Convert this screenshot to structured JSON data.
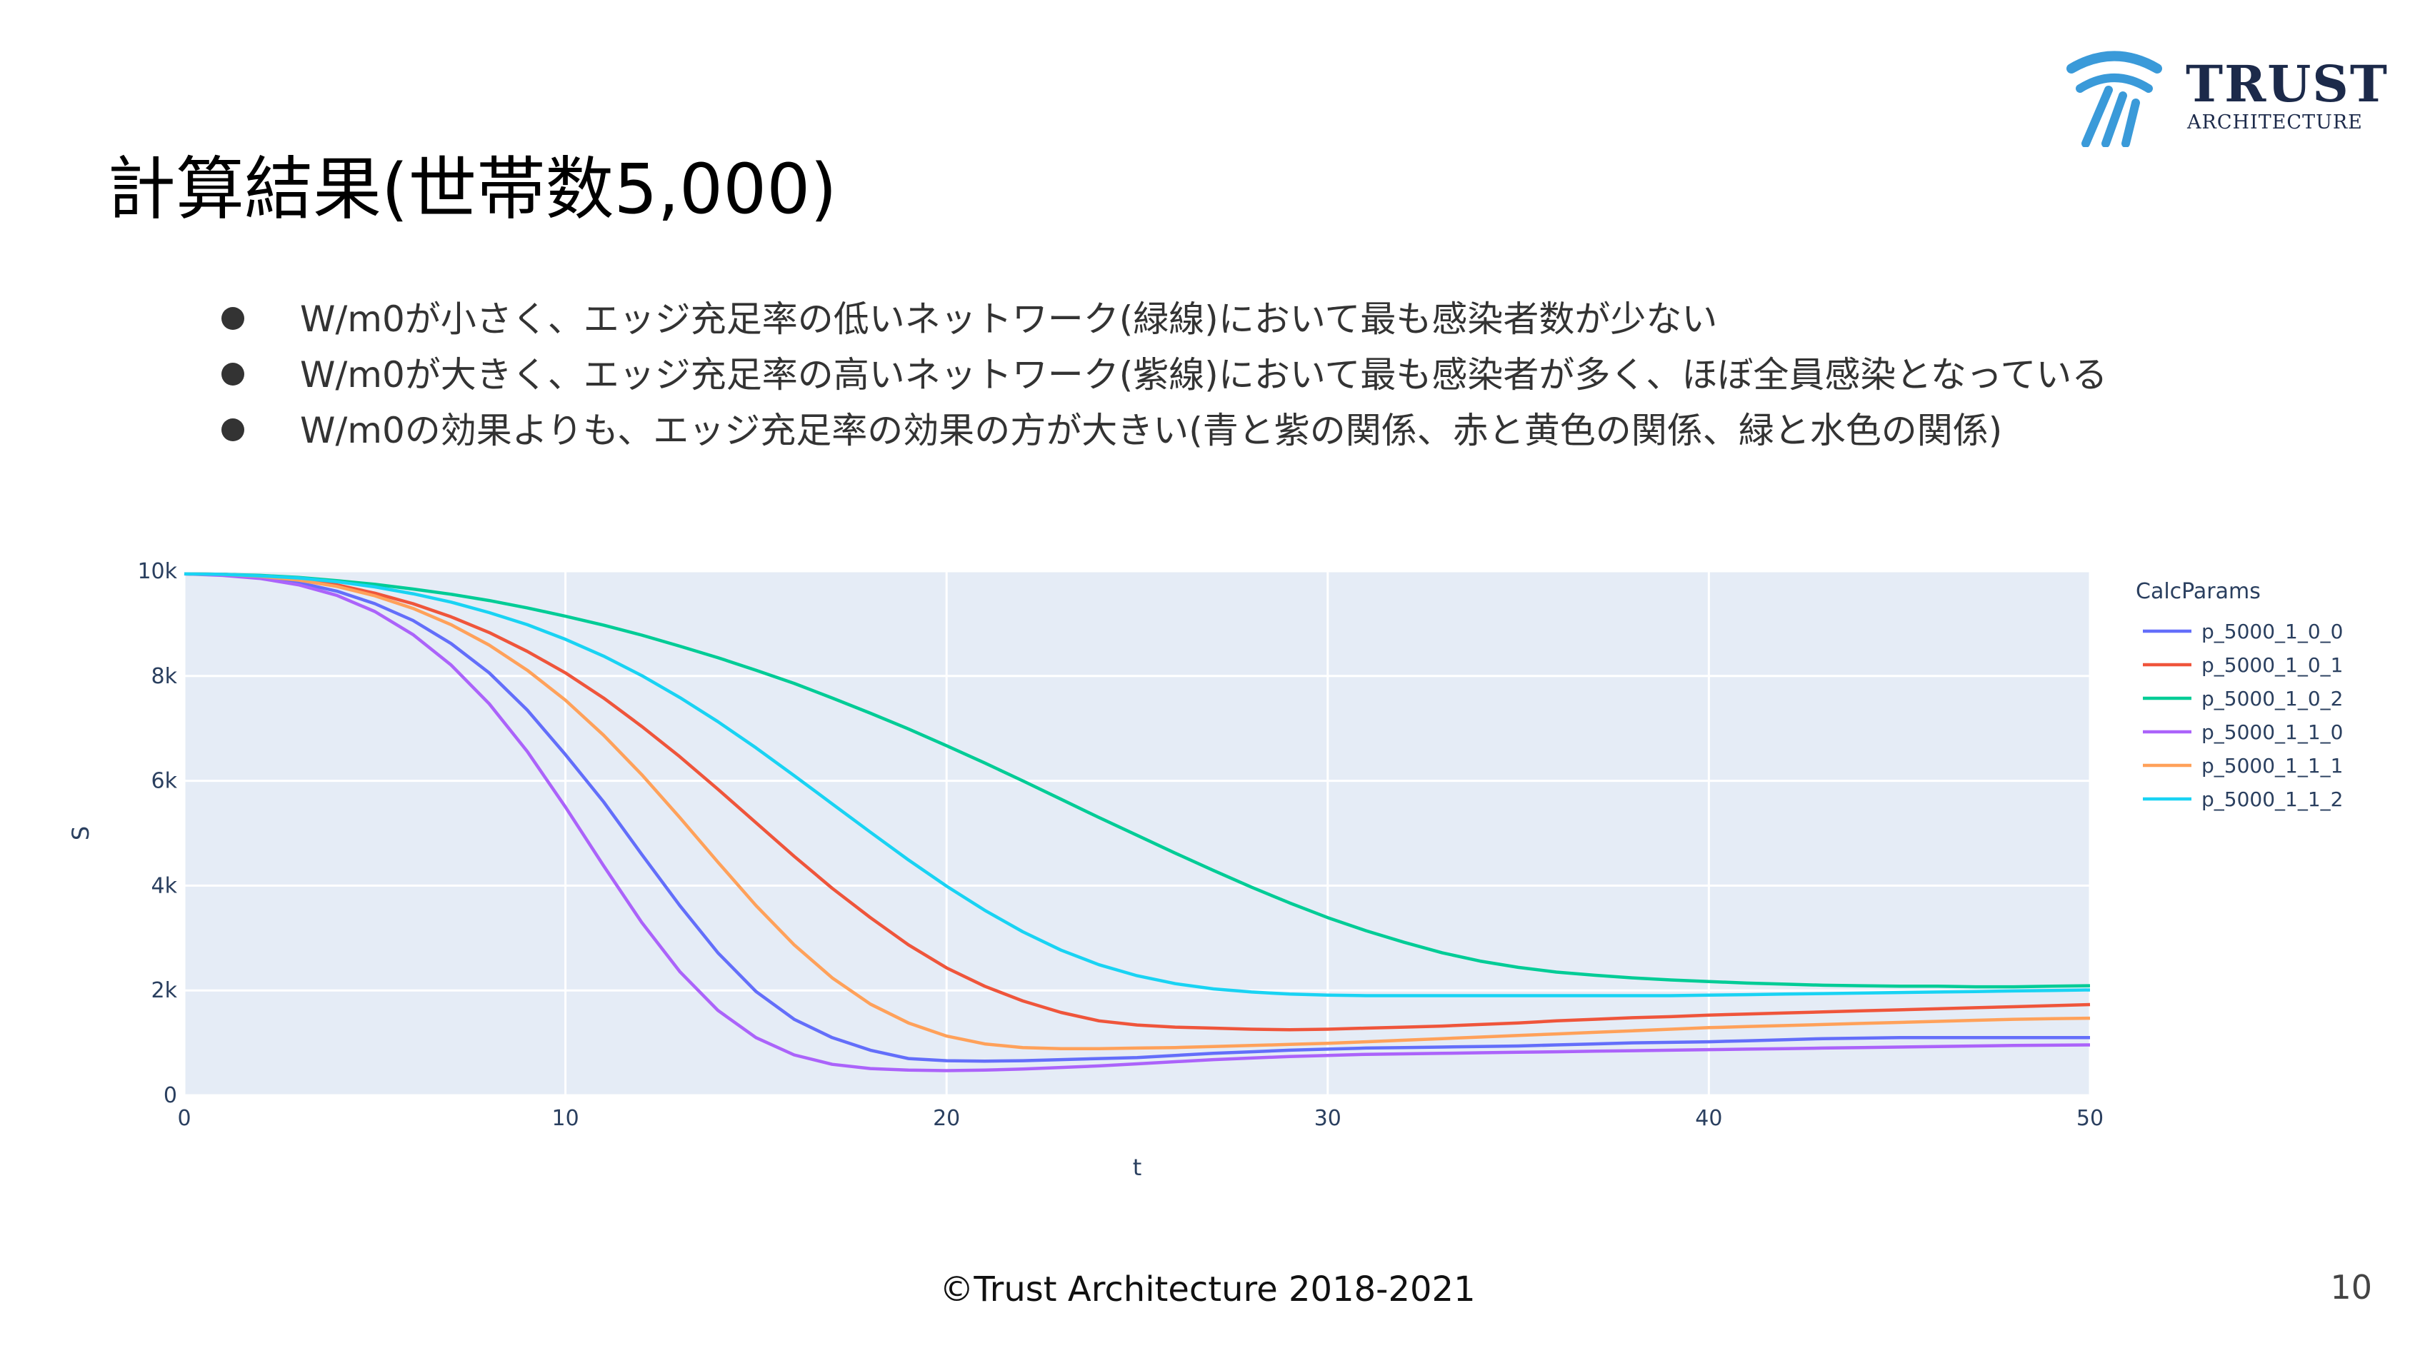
{
  "slide": {
    "title": "計算結果(世帯数5,000)",
    "bullets": [
      "W/m0が小さく、エッジ充足率の低いネットワーク(緑線)において最も感染者数が少ない",
      "W/m0が大きく、エッジ充足率の高いネットワーク(紫線)において最も感染者が多く、ほぼ全員感染となっている",
      "W/m0の効果よりも、エッジ充足率の効果の方が大きい(青と紫の関係、赤と黄色の関係、緑と水色の関係)"
    ],
    "footer": "©Trust Architecture 2018-2021",
    "page_number": "10",
    "logo": {
      "line1": "TRUST",
      "line2": "ARCHITECTURE",
      "icon": "trust-architecture-logo-icon",
      "color": "#3a9ad9"
    }
  },
  "chart_data": {
    "type": "line",
    "xlabel": "t",
    "ylabel": "S",
    "xlim": [
      0,
      50
    ],
    "ylim": [
      0,
      10000
    ],
    "x_ticks": [
      0,
      10,
      20,
      30,
      40,
      50
    ],
    "y_ticks": [
      0,
      2000,
      4000,
      6000,
      8000,
      10000
    ],
    "y_tick_labels": [
      "0",
      "2k",
      "4k",
      "6k",
      "8k",
      "10k"
    ],
    "grid": true,
    "legend_title": "CalcParams",
    "legend_position": "right",
    "plot_bg": "#e5ecf6",
    "x": [
      0,
      1,
      2,
      3,
      4,
      5,
      6,
      7,
      8,
      9,
      10,
      11,
      12,
      13,
      14,
      15,
      16,
      17,
      18,
      19,
      20,
      21,
      22,
      23,
      24,
      25,
      26,
      27,
      28,
      29,
      30,
      31,
      32,
      33,
      34,
      35,
      36,
      37,
      38,
      39,
      40,
      41,
      42,
      43,
      44,
      45,
      46,
      47,
      48,
      49,
      50
    ],
    "series": [
      {
        "name": "p_5000_1_0_0",
        "color": "#636efa",
        "values": [
          9950,
          9930,
          9880,
          9780,
          9620,
          9380,
          9060,
          8620,
          8060,
          7350,
          6500,
          5600,
          4600,
          3620,
          2720,
          1980,
          1450,
          1100,
          860,
          700,
          660,
          650,
          660,
          680,
          700,
          720,
          760,
          800,
          830,
          860,
          880,
          900,
          910,
          920,
          930,
          940,
          960,
          980,
          1000,
          1010,
          1020,
          1040,
          1060,
          1080,
          1090,
          1100,
          1100,
          1100,
          1100,
          1100,
          1100
        ]
      },
      {
        "name": "p_5000_1_0_1",
        "color": "#ef553b",
        "values": [
          9950,
          9940,
          9910,
          9850,
          9740,
          9580,
          9380,
          9130,
          8830,
          8470,
          8060,
          7580,
          7040,
          6460,
          5840,
          5200,
          4560,
          3950,
          3390,
          2870,
          2430,
          2080,
          1800,
          1580,
          1420,
          1340,
          1300,
          1280,
          1260,
          1250,
          1260,
          1280,
          1300,
          1320,
          1350,
          1380,
          1420,
          1450,
          1480,
          1500,
          1530,
          1550,
          1570,
          1590,
          1610,
          1630,
          1650,
          1670,
          1690,
          1710,
          1730
        ]
      },
      {
        "name": "p_5000_1_0_2",
        "color": "#00cc96",
        "values": [
          9950,
          9940,
          9920,
          9880,
          9820,
          9750,
          9660,
          9560,
          9440,
          9300,
          9140,
          8970,
          8780,
          8570,
          8350,
          8110,
          7860,
          7580,
          7290,
          6990,
          6670,
          6340,
          6000,
          5650,
          5300,
          4960,
          4620,
          4290,
          3970,
          3670,
          3390,
          3140,
          2920,
          2720,
          2560,
          2440,
          2350,
          2290,
          2240,
          2200,
          2170,
          2140,
          2120,
          2100,
          2090,
          2080,
          2080,
          2070,
          2070,
          2080,
          2090
        ]
      },
      {
        "name": "p_5000_1_1_0",
        "color": "#ab63fa",
        "values": [
          9950,
          9920,
          9860,
          9740,
          9540,
          9230,
          8790,
          8210,
          7470,
          6560,
          5500,
          4380,
          3300,
          2360,
          1620,
          1100,
          770,
          590,
          510,
          480,
          470,
          480,
          500,
          530,
          560,
          600,
          640,
          680,
          710,
          740,
          760,
          780,
          790,
          800,
          810,
          820,
          830,
          840,
          850,
          860,
          870,
          880,
          890,
          900,
          910,
          920,
          930,
          940,
          950,
          955,
          960
        ]
      },
      {
        "name": "p_5000_1_1_1",
        "color": "#ffa15a",
        "values": [
          9950,
          9940,
          9900,
          9830,
          9710,
          9530,
          9290,
          8980,
          8590,
          8110,
          7540,
          6870,
          6120,
          5300,
          4450,
          3620,
          2870,
          2240,
          1740,
          1380,
          1130,
          980,
          910,
          890,
          890,
          900,
          910,
          930,
          950,
          970,
          990,
          1020,
          1050,
          1080,
          1110,
          1140,
          1170,
          1200,
          1230,
          1260,
          1290,
          1310,
          1330,
          1350,
          1370,
          1390,
          1410,
          1430,
          1450,
          1460,
          1470
        ]
      },
      {
        "name": "p_5000_1_1_2",
        "color": "#19d3f3",
        "values": [
          9950,
          9940,
          9910,
          9870,
          9800,
          9700,
          9570,
          9410,
          9210,
          8980,
          8700,
          8380,
          8010,
          7590,
          7130,
          6630,
          6100,
          5560,
          5020,
          4490,
          3990,
          3530,
          3120,
          2770,
          2490,
          2280,
          2130,
          2030,
          1970,
          1930,
          1910,
          1900,
          1900,
          1900,
          1900,
          1900,
          1900,
          1900,
          1900,
          1900,
          1910,
          1920,
          1930,
          1940,
          1950,
          1960,
          1970,
          1980,
          1990,
          2000,
          2010
        ]
      }
    ]
  }
}
